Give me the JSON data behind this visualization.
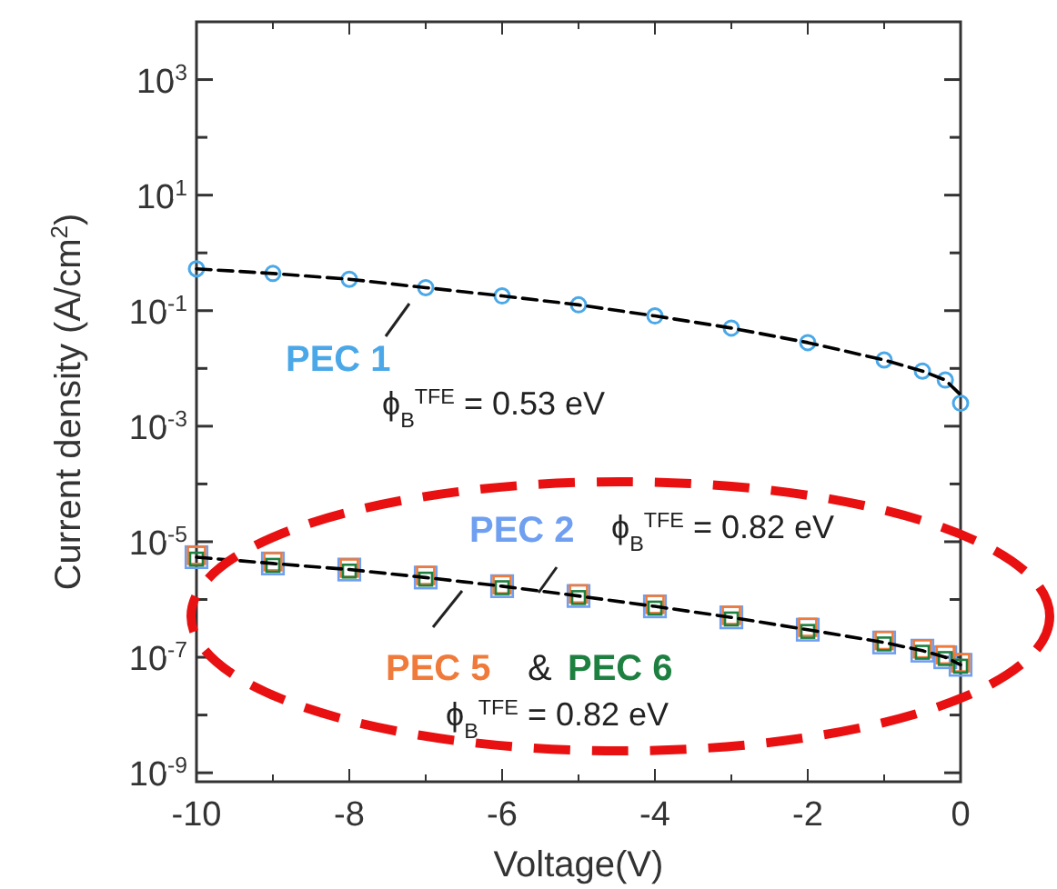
{
  "chart_data": {
    "type": "scatter",
    "xlabel": "Voltage(V)",
    "ylabel": "Current density (A/cm$^{2}$)",
    "log": "y",
    "xlim": [
      -10,
      0
    ],
    "ylim": [
      7e-10,
      10000
    ],
    "xticks": [
      -10,
      {
        "value": -9,
        "label": null
      },
      -8,
      {
        "value": -7,
        "label": null
      },
      -6,
      {
        "value": -5,
        "label": null
      },
      -4,
      {
        "value": -3,
        "label": null
      },
      -2,
      {
        "value": -1,
        "label": null
      },
      0
    ],
    "yticks": [
      {
        "value": 1e-09,
        "label": "10$^{-9}$"
      },
      {
        "value": 1e-08,
        "label": null
      },
      {
        "value": 1e-07,
        "label": "10$^{-7}$"
      },
      {
        "value": 1e-06,
        "label": null
      },
      {
        "value": 1e-05,
        "label": "10$^{-5}$"
      },
      {
        "value": 0.0001,
        "label": null
      },
      {
        "value": 0.001,
        "label": "10$^{-3}$"
      },
      {
        "value": 0.01,
        "label": null
      },
      {
        "value": 0.1,
        "label": "10$^{-1}$"
      },
      {
        "value": 1,
        "label": null
      },
      {
        "value": 10,
        "label": "10$^{1}$"
      },
      {
        "value": 100,
        "label": null
      },
      {
        "value": 1000,
        "label": "10$^{3}$"
      }
    ],
    "x": [
      -10,
      -9,
      -8,
      -7,
      -6,
      -5,
      -4,
      -3,
      -2,
      -1,
      -0.5,
      -0.2,
      0
    ],
    "series": [
      {
        "name": "PEC 1",
        "color": "#4aa8e8",
        "marker": "circle",
        "values": [
          0.53,
          0.44,
          0.35,
          0.25,
          0.18,
          0.126,
          0.081,
          0.05,
          0.028,
          0.014,
          0.009,
          0.0063,
          0.0025
        ]
      },
      {
        "name": "PEC 2",
        "color": "#6f9ff0",
        "marker": "square",
        "values": [
          5.4e-06,
          4.2e-06,
          3.3e-06,
          2.4e-06,
          1.7e-06,
          1.15e-06,
          7.6e-07,
          4.9e-07,
          3e-07,
          1.8e-07,
          1.3e-07,
          1e-07,
          7.4e-08
        ]
      },
      {
        "name": "PEC 5",
        "color": "#f07a3a",
        "marker": "square",
        "values": [
          5.8e-06,
          4.5e-06,
          3.5e-06,
          2.6e-06,
          1.8e-06,
          1.25e-06,
          8.2e-07,
          5.3e-07,
          3.3e-07,
          1.95e-07,
          1.4e-07,
          1.1e-07,
          8e-08
        ]
      },
      {
        "name": "PEC 6",
        "color": "#1e8040",
        "marker": "square",
        "values": [
          5e-06,
          3.9e-06,
          3.1e-06,
          2.25e-06,
          1.6e-06,
          1.08e-06,
          7.1e-07,
          4.6e-07,
          2.8e-07,
          1.7e-07,
          1.22e-07,
          9.5e-08,
          7e-08
        ]
      },
      {
        "type": "line",
        "color": "#000000",
        "marker": "none",
        "line_style": "dashed",
        "values": [
          0.53,
          0.44,
          0.35,
          0.25,
          0.18,
          0.126,
          0.081,
          0.05,
          0.028,
          0.014,
          0.009,
          0.0063,
          0.0035
        ]
      },
      {
        "type": "line",
        "color": "#000000",
        "marker": "none",
        "line_style": "dashed",
        "values": [
          5.4e-06,
          4.2e-06,
          3.3e-06,
          2.4e-06,
          1.7e-06,
          1.15e-06,
          7.6e-07,
          4.9e-07,
          3e-07,
          1.8e-07,
          1.3e-07,
          1e-07,
          7.4e-08
        ]
      }
    ],
    "annotations": [
      "ϕ$_{B}$$^{TFE}$ = 0.53 eV",
      "ϕ$_{B}$$^{TFE}$ = 0.82 eV",
      "&",
      "ϕ$_{B}$$^{TFE}$ = 0.82 eV"
    ]
  }
}
